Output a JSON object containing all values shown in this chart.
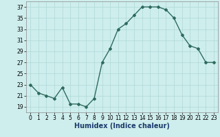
{
  "x": [
    0,
    1,
    2,
    3,
    4,
    5,
    6,
    7,
    8,
    9,
    10,
    11,
    12,
    13,
    14,
    15,
    16,
    17,
    18,
    19,
    20,
    21,
    22,
    23
  ],
  "y": [
    23,
    21.5,
    21,
    20.5,
    22.5,
    19.5,
    19.5,
    19,
    20.5,
    27,
    29.5,
    33,
    34,
    35.5,
    37,
    37,
    37,
    36.5,
    35,
    32,
    30,
    29.5,
    27,
    27
  ],
  "line_color": "#2e6b5e",
  "marker": "D",
  "marker_size": 2.0,
  "bg_color": "#ceeeed",
  "grid_color": "#aed8d5",
  "xlabel": "Humidex (Indice chaleur)",
  "xlabel_color": "#1a3a6b",
  "xlabel_fontsize": 7,
  "xlim": [
    -0.5,
    23.5
  ],
  "ylim": [
    18,
    38
  ],
  "yticks": [
    19,
    21,
    23,
    25,
    27,
    29,
    31,
    33,
    35,
    37
  ],
  "xticks": [
    0,
    1,
    2,
    3,
    4,
    5,
    6,
    7,
    8,
    9,
    10,
    11,
    12,
    13,
    14,
    15,
    16,
    17,
    18,
    19,
    20,
    21,
    22,
    23
  ],
  "tick_fontsize": 5.5,
  "line_width": 1.0
}
